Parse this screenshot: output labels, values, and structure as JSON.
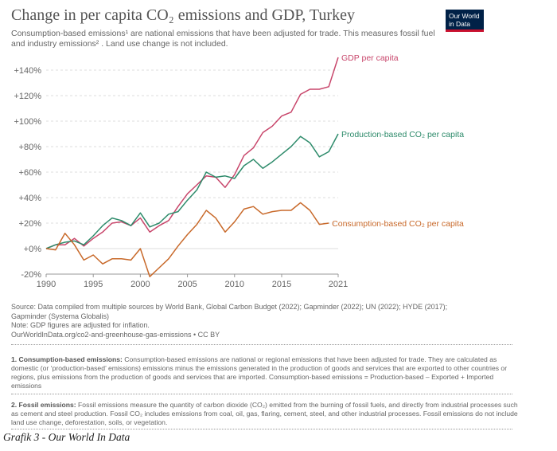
{
  "header": {
    "title": "Change in per capita CO₂ emissions and GDP, Turkey",
    "subtitle_line1": "Consumption-based emissions¹ are national emissions that have been adjusted for trade. This measures fossil fuel",
    "subtitle_line2": "and industry emissions² . Land use change is not included.",
    "logo_line1": "Our World",
    "logo_line2": "in Data"
  },
  "chart_data": {
    "type": "line",
    "title": "Change in per capita CO₂ emissions and GDP, Turkey",
    "xlabel": "",
    "ylabel": "",
    "xlim": [
      1990,
      2021
    ],
    "ylim": [
      -20,
      150
    ],
    "y_ticks": [
      -20,
      0,
      20,
      40,
      60,
      80,
      100,
      120,
      140
    ],
    "y_tick_labels": [
      "-20%",
      "+0%",
      "+20%",
      "+40%",
      "+60%",
      "+80%",
      "+100%",
      "+120%",
      "+140%"
    ],
    "x_ticks": [
      1990,
      1995,
      2000,
      2005,
      2010,
      2015,
      2021
    ],
    "x_tick_labels": [
      "1990",
      "1995",
      "2000",
      "2005",
      "2010",
      "2015",
      "2021"
    ],
    "grid": true,
    "x": [
      1990,
      1991,
      1992,
      1993,
      1994,
      1995,
      1996,
      1997,
      1998,
      1999,
      2000,
      2001,
      2002,
      2003,
      2004,
      2005,
      2006,
      2007,
      2008,
      2009,
      2010,
      2011,
      2012,
      2013,
      2014,
      2015,
      2016,
      2017,
      2018,
      2019,
      2020,
      2021
    ],
    "series": [
      {
        "name": "GDP per capita",
        "color": "#c8466b",
        "values": [
          0,
          3,
          3,
          8,
          2,
          8,
          13,
          20,
          21,
          18,
          24,
          13,
          18,
          22,
          33,
          43,
          50,
          57,
          56,
          48,
          58,
          73,
          79,
          91,
          96,
          104,
          107,
          121,
          125,
          125,
          127,
          150
        ]
      },
      {
        "name": "Production-based CO₂ per capita",
        "color": "#2e8b6b",
        "values": [
          0,
          3,
          5,
          6,
          3,
          10,
          18,
          24,
          22,
          18,
          28,
          17,
          20,
          27,
          29,
          38,
          46,
          60,
          56,
          57,
          55,
          65,
          70,
          63,
          68,
          74,
          80,
          88,
          83,
          72,
          76,
          90
        ]
      },
      {
        "name": "Consumption-based CO₂ per capita",
        "color": "#c8692a",
        "values": [
          0,
          -1,
          12,
          3,
          -9,
          -5,
          -12,
          -8,
          -8,
          -9,
          0,
          -22,
          -15,
          -8,
          2,
          11,
          19,
          30,
          24,
          13,
          21,
          31,
          33,
          27,
          29,
          30,
          30,
          36,
          30,
          19,
          20,
          null
        ]
      }
    ]
  },
  "source": {
    "line1": "Source: Data compiled from multiple sources by World Bank, Global Carbon Budget (2022); Gapminder (2022); UN (2022); HYDE (2017);",
    "line2": "Gapminder (Systema Globalis)",
    "line3": "Note: GDP figures are adjusted for inflation.",
    "line4": "OurWorldInData.org/co2-and-greenhouse-gas-emissions • CC BY"
  },
  "footnotes": {
    "fn1_label": "1. Consumption-based emissions:",
    "fn1_text": " Consumption-based emissions are national or regional emissions that have been adjusted for trade. They are calculated as domestic (or ‘production-based’ emissions) emissions minus the emissions generated in the production of goods and services that are exported to other countries or regions, plus emissions from the production of goods and services that are imported. Consumption-based emissions = Production-based – Exported + Imported emissions",
    "fn2_label": "2. Fossil emissions:",
    "fn2_text": " Fossil emissions measure the quantity of carbon dioxide (CO₂) emitted from the burning of fossil fuels, and directly from industrial processes such as cement and steel production. Fossil CO₂ includes emissions from coal, oil, gas, flaring, cement, steel, and other industrial processes. Fossil emissions do not include land use change, deforestation, soils, or vegetation."
  },
  "caption": "Grafik 3 - Our World In Data",
  "colors": {
    "grid": "#dddddd",
    "axis_text": "#666666"
  }
}
